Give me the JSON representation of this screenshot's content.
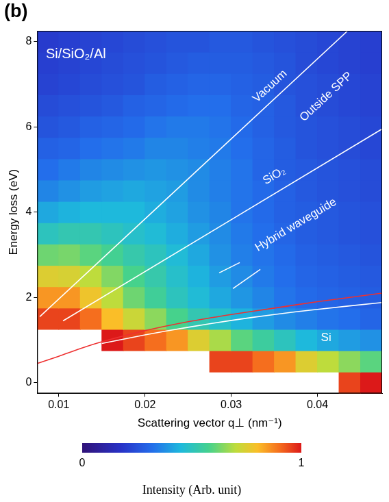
{
  "chart_data": {
    "type": "heatmap",
    "panel_label": "(b)",
    "x_label": "Scattering vector q⊥ (nm⁻¹)",
    "y_label": "Energy loss (eV)",
    "xlim": [
      0.0075,
      0.0475
    ],
    "ylim": [
      -0.25,
      8.25
    ],
    "xticks": [
      0.01,
      0.02,
      0.03,
      0.04
    ],
    "yticks": [
      0,
      2,
      4,
      6,
      8
    ],
    "grid": false,
    "heatmap": {
      "x_edges": [
        0.0075,
        0.01,
        0.0125,
        0.015,
        0.0175,
        0.02,
        0.0225,
        0.025,
        0.0275,
        0.03,
        0.0325,
        0.035,
        0.0375,
        0.04,
        0.0425,
        0.045,
        0.0475
      ],
      "y_edges": [
        -0.25,
        0.25,
        0.75,
        1.25,
        1.75,
        2.25,
        2.75,
        3.25,
        3.75,
        4.25,
        4.75,
        5.25,
        5.75,
        6.25,
        6.75,
        7.25,
        7.75,
        8.25
      ],
      "cells": [
        [
          null,
          null,
          null,
          null,
          null,
          null,
          null,
          null,
          null,
          null,
          null,
          null,
          null,
          null,
          0.95,
          1.0
        ],
        [
          null,
          null,
          null,
          null,
          null,
          null,
          null,
          null,
          0.95,
          0.95,
          0.9,
          0.85,
          0.75,
          0.7,
          0.65,
          0.6
        ],
        [
          null,
          null,
          null,
          1.0,
          0.95,
          0.9,
          0.85,
          0.75,
          0.68,
          0.6,
          0.55,
          0.5,
          0.45,
          0.42,
          0.4,
          0.38
        ],
        [
          0.95,
          0.95,
          0.9,
          0.8,
          0.72,
          0.65,
          0.58,
          0.52,
          0.48,
          0.44,
          0.4,
          0.37,
          0.35,
          0.33,
          0.32,
          0.3
        ],
        [
          0.85,
          0.85,
          0.78,
          0.7,
          0.62,
          0.56,
          0.5,
          0.46,
          0.42,
          0.39,
          0.36,
          0.33,
          0.31,
          0.3,
          0.29,
          0.28
        ],
        [
          0.75,
          0.74,
          0.7,
          0.64,
          0.58,
          0.53,
          0.48,
          0.44,
          0.4,
          0.37,
          0.34,
          0.32,
          0.3,
          0.29,
          0.28,
          0.27
        ],
        [
          0.62,
          0.63,
          0.6,
          0.57,
          0.53,
          0.5,
          0.46,
          0.42,
          0.38,
          0.35,
          0.33,
          0.31,
          0.29,
          0.28,
          0.27,
          0.26
        ],
        [
          0.5,
          0.52,
          0.52,
          0.5,
          0.48,
          0.46,
          0.43,
          0.4,
          0.37,
          0.34,
          0.32,
          0.3,
          0.28,
          0.27,
          0.26,
          0.25
        ],
        [
          0.42,
          0.44,
          0.45,
          0.45,
          0.45,
          0.43,
          0.41,
          0.38,
          0.36,
          0.33,
          0.31,
          0.29,
          0.28,
          0.27,
          0.26,
          0.25
        ],
        [
          0.36,
          0.38,
          0.4,
          0.41,
          0.42,
          0.41,
          0.4,
          0.37,
          0.35,
          0.33,
          0.31,
          0.29,
          0.27,
          0.26,
          0.25,
          0.24
        ],
        [
          0.32,
          0.34,
          0.36,
          0.37,
          0.38,
          0.39,
          0.38,
          0.37,
          0.35,
          0.33,
          0.3,
          0.28,
          0.27,
          0.26,
          0.25,
          0.24
        ],
        [
          0.29,
          0.3,
          0.32,
          0.33,
          0.34,
          0.36,
          0.36,
          0.35,
          0.34,
          0.32,
          0.3,
          0.28,
          0.26,
          0.25,
          0.24,
          0.23
        ],
        [
          0.26,
          0.27,
          0.29,
          0.3,
          0.31,
          0.33,
          0.34,
          0.34,
          0.33,
          0.31,
          0.29,
          0.27,
          0.26,
          0.25,
          0.24,
          0.23
        ],
        [
          0.24,
          0.25,
          0.26,
          0.27,
          0.29,
          0.3,
          0.31,
          0.32,
          0.32,
          0.3,
          0.29,
          0.27,
          0.25,
          0.24,
          0.23,
          0.22
        ],
        [
          0.22,
          0.23,
          0.24,
          0.25,
          0.26,
          0.28,
          0.29,
          0.3,
          0.3,
          0.29,
          0.28,
          0.26,
          0.25,
          0.24,
          0.23,
          0.22
        ],
        [
          0.21,
          0.22,
          0.23,
          0.24,
          0.25,
          0.26,
          0.27,
          0.28,
          0.28,
          0.28,
          0.27,
          0.26,
          0.24,
          0.23,
          0.22,
          0.21
        ],
        [
          0.2,
          0.21,
          0.22,
          0.23,
          0.24,
          0.25,
          0.26,
          0.26,
          0.27,
          0.27,
          0.26,
          0.25,
          0.24,
          0.23,
          0.22,
          0.21
        ]
      ],
      "colorbar": {
        "range": [
          0,
          1
        ],
        "ticks": [
          0,
          1
        ],
        "label": "Intensity (Arb. unit)"
      }
    },
    "series": [
      {
        "color": "#ffffff",
        "x": [
          0.0078,
          0.0435
        ],
        "values": [
          1.55,
          8.25
        ]
      },
      {
        "color": "#ffffff",
        "x": [
          0.0105,
          0.0475
        ],
        "values": [
          1.45,
          5.95
        ]
      },
      {
        "color": "#ffffff",
        "x": [
          0.015,
          0.02,
          0.025,
          0.03,
          0.035,
          0.04,
          0.0475
        ],
        "values": [
          0.92,
          1.12,
          1.3,
          1.46,
          1.6,
          1.72,
          1.88
        ]
      },
      {
        "color": "#ee3030",
        "x": [
          0.0075,
          0.01,
          0.0125,
          0.015,
          0.02,
          0.025,
          0.03,
          0.035,
          0.04,
          0.0475
        ],
        "values": [
          0.45,
          0.62,
          0.8,
          0.96,
          1.22,
          1.43,
          1.6,
          1.75,
          1.9,
          2.1
        ]
      }
    ],
    "annotations": [
      {
        "text": "Si/SiO₂/Al",
        "x": 0.0085,
        "y": 7.7
      },
      {
        "text": "Vacuum",
        "x": 0.0345,
        "y": 6.95
      },
      {
        "text": "Outside SPP",
        "x": 0.041,
        "y": 6.7
      },
      {
        "text": "SiO₂",
        "x": 0.035,
        "y": 4.85
      },
      {
        "text": "Hybrid waveguide",
        "x": 0.0375,
        "y": 3.7
      },
      {
        "text": "Si",
        "x": 0.041,
        "y": 1.05
      }
    ]
  }
}
